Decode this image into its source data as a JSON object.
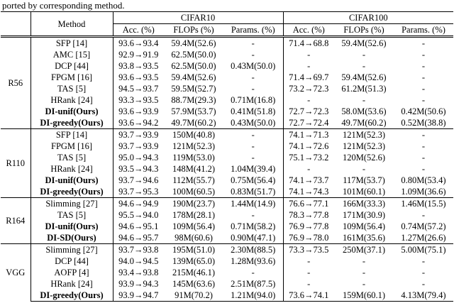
{
  "caption": "ported by corresponding method.",
  "table": {
    "method_header": "Method",
    "col_groups": [
      {
        "label": "CIFAR10"
      },
      {
        "label": "CIFAR100"
      }
    ],
    "sub_headers": [
      "Acc. (%)",
      "FLOPs (%)",
      "Params. (%)",
      "Acc. (%)",
      "FLOPs (%)",
      "Params. (%)"
    ],
    "groups": [
      {
        "name": "R56",
        "rows": [
          {
            "method": "SFP [14]",
            "bold": false,
            "cells": [
              "93.6→93.4",
              "59.4M(52.6)",
              "-",
              "71.4→68.8",
              "59.4M(52.6)",
              "-"
            ]
          },
          {
            "method": "AMC [15]",
            "bold": false,
            "cells": [
              "92.9→91.9",
              "62.5M(50.0)",
              "-",
              "-",
              "-",
              "-"
            ]
          },
          {
            "method": "DCP [44]",
            "bold": false,
            "cells": [
              "93.8→93.5",
              "62.5M(50.0)",
              "0.43M(50.0)",
              "-",
              "-",
              "-"
            ]
          },
          {
            "method": "FPGM [16]",
            "bold": false,
            "cells": [
              "93.6→93.5",
              "59.4M(52.6)",
              "-",
              "71.4→69.7",
              "59.4M(52.6)",
              "-"
            ]
          },
          {
            "method": "TAS [5]",
            "bold": false,
            "cells": [
              "94.5→93.7",
              "59.5M(52.7)",
              "-",
              "73.2→72.3",
              "61.2M(51.3)",
              "-"
            ]
          },
          {
            "method": "HRank [24]",
            "bold": false,
            "cells": [
              "93.3→93.5",
              "88.7M(29.3)",
              "0.71M(16.8)",
              "-",
              "-",
              "-"
            ]
          },
          {
            "method": "DI-unif(Ours)",
            "bold": true,
            "cells": [
              "93.6→93.9",
              "57.9M(53.7)",
              "0.41M(51.8)",
              "72.7→72.3",
              "58.0M(53.6)",
              "0.42M(50.6)"
            ]
          },
          {
            "method": "DI-greedy(Ours)",
            "bold": true,
            "cells": [
              "93.6→94.2",
              "49.7M(60.2)",
              "0.43M(50.0)",
              "72.7→72.4",
              "49.7M(60.2)",
              "0.52M(38.8)"
            ]
          }
        ]
      },
      {
        "name": "R110",
        "rows": [
          {
            "method": "SFP [14]",
            "bold": false,
            "cells": [
              "93.7→93.9",
              "150M(40.8)",
              "-",
              "74.1→71.3",
              "121M(52.3)",
              "-"
            ]
          },
          {
            "method": "FPGM [16]",
            "bold": false,
            "cells": [
              "93.7→93.9",
              "121M(52.3)",
              "-",
              "74.1→72.6",
              "121M(52.3)",
              "-"
            ]
          },
          {
            "method": "TAS [5]",
            "bold": false,
            "cells": [
              "95.0→94.3",
              "119M(53.0)",
              "-",
              "75.1→73.2",
              "120M(52.6)",
              "-"
            ]
          },
          {
            "method": "HRank [24]",
            "bold": false,
            "cells": [
              "93.5→94.3",
              "148M(41.2)",
              "1.04M(39.4)",
              "-",
              "-",
              "-"
            ]
          },
          {
            "method": "DI-unif(Ours)",
            "bold": true,
            "cells": [
              "93.7→94.6",
              "112M(55.7)",
              "0.75M(56.4)",
              "74.1→73.7",
              "117M(53.7)",
              "0.80M(53.4)"
            ]
          },
          {
            "method": "DI-greedy(Ours)",
            "bold": true,
            "cells": [
              "93.7→95.3",
              "100M(60.5)",
              "0.83M(51.7)",
              "74.1→74.3",
              "101M(60.1)",
              "1.09M(36.6)"
            ]
          }
        ]
      },
      {
        "name": "R164",
        "rows": [
          {
            "method": "Slimming [27]",
            "bold": false,
            "cells": [
              "94.6→94.9",
              "190M(23.7)",
              "1.44M(14.9)",
              "76.6→77.1",
              "166M(33.3)",
              "1.46M(15.5)"
            ]
          },
          {
            "method": "TAS [5]",
            "bold": false,
            "cells": [
              "95.5→94.0",
              "178M(28.1)",
              "-",
              "78.3→77.8",
              "171M(30.9)",
              "-"
            ]
          },
          {
            "method": "DI-unif(Ours)",
            "bold": true,
            "cells": [
              "94.6→95.1",
              "109M(56.4)",
              "0.71M(58.2)",
              "76.9→77.8",
              "109M(56.4)",
              "0.74M(57.2)"
            ]
          },
          {
            "method": "DI-SD(Ours)",
            "bold": true,
            "cells": [
              "94.6→95.7",
              "98M(60.6)",
              "0.90M(47.1)",
              "76.9→78.0",
              "161M(35.6)",
              "1.27M(26.6)"
            ]
          }
        ]
      },
      {
        "name": "VGG",
        "rows": [
          {
            "method": "Slimming [27]",
            "bold": false,
            "cells": [
              "93.7→93.8",
              "195M(51.0)",
              "2.30M(88.5)",
              "73.3→73.5",
              "250M(37.1)",
              "5.00M(75.1)"
            ]
          },
          {
            "method": "DCP [44]",
            "bold": false,
            "cells": [
              "94.0→94.5",
              "139M(65.0)",
              "1.28M(93.6)",
              "-",
              "-",
              "-"
            ]
          },
          {
            "method": "AOFP [4]",
            "bold": false,
            "cells": [
              "93.4→93.8",
              "215M(46.1)",
              "-",
              "-",
              "-",
              "-"
            ]
          },
          {
            "method": "HRank [24]",
            "bold": false,
            "cells": [
              "93.9→94.3",
              "145M(63.6)",
              "2.51M(87.5)",
              "-",
              "-",
              "-"
            ]
          },
          {
            "method": "DI-greedy(Ours)",
            "bold": true,
            "cells": [
              "93.9→94.7",
              "91M(70.2)",
              "1.21M(94.0)",
              "73.6→74.1",
              "159M(60.1)",
              "4.13M(79.4)"
            ]
          }
        ]
      }
    ]
  }
}
